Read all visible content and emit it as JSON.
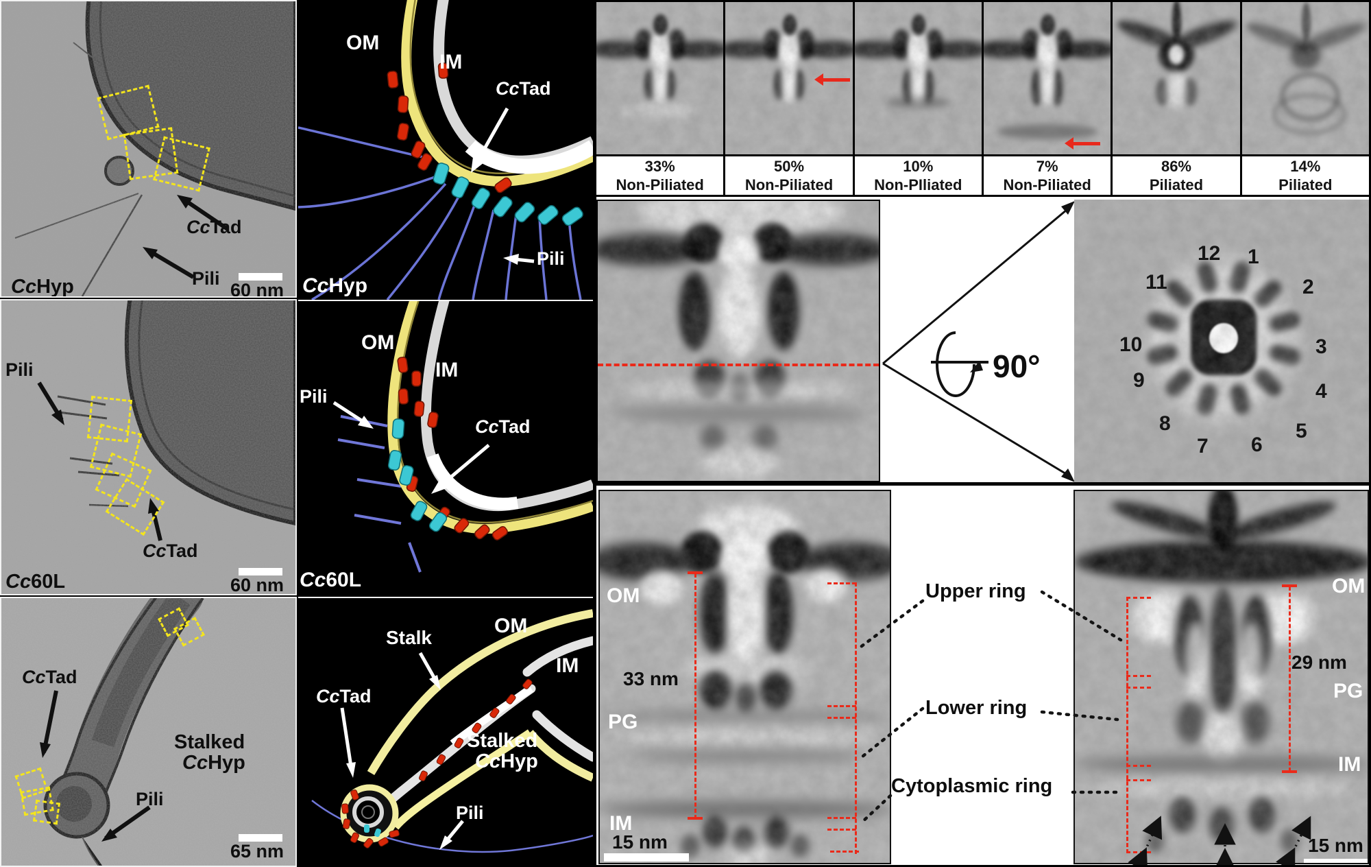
{
  "labels": {
    "om": "OM",
    "im": "IM",
    "pg": "PG",
    "pili": "Pili",
    "stalk": "Stalk",
    "stalked": "Stalked",
    "cctad": {
      "i": "Cc",
      "r": "Tad"
    },
    "cchyp": {
      "i": "Cc",
      "r": "Hyp"
    },
    "cc60l": {
      "i": "Cc",
      "r": "60L"
    }
  },
  "scale_bars": {
    "panel_a": "60 nm",
    "panel_b": "60 nm",
    "panel_c": "65 nm",
    "sub_left": "15 nm",
    "sub_right": "15 nm"
  },
  "measurements": {
    "left_height": "33 nm",
    "right_height": "29 nm",
    "rotation": "90°"
  },
  "class_averages": {
    "items": [
      {
        "percent": "33%",
        "state": "Non-Piliated"
      },
      {
        "percent": "50%",
        "state": "Non-Piliated"
      },
      {
        "percent": "10%",
        "state": "Non-PIliated"
      },
      {
        "percent": "7%",
        "state": "Non-Piliated"
      },
      {
        "percent": "86%",
        "state": "Piliated"
      },
      {
        "percent": "14%",
        "state": "Piliated"
      }
    ]
  },
  "top_view_numbers": [
    "1",
    "2",
    "3",
    "4",
    "5",
    "6",
    "7",
    "8",
    "9",
    "10",
    "11",
    "12"
  ],
  "ring_labels": {
    "upper": "Upper ring",
    "lower": "Lower ring",
    "cytoplasmic": "Cytoplasmic ring"
  }
}
